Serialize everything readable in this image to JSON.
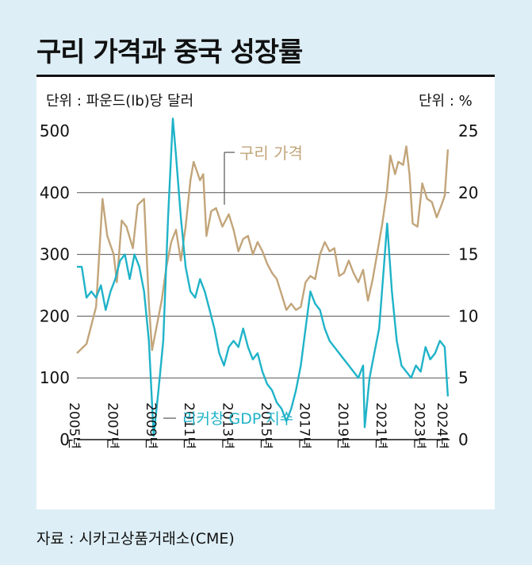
{
  "title": "구리 가격과 중국 성장률",
  "unit_left": "단위 : 파운드(lb)당 달러",
  "unit_right": "단위 : %",
  "source": "자료 : 시카고상품거래소(CME)",
  "colors": {
    "copper": "#c2a57a",
    "gdp": "#1fb3c8",
    "background": "#ddeef6",
    "panel": "#ffffff",
    "grid": "#555555"
  },
  "chart_data": {
    "type": "line",
    "x_ticks": [
      "2005년",
      "2007년",
      "2009년",
      "2011년",
      "2013년",
      "2015년",
      "2017년",
      "2019년",
      "2021년",
      "2023년",
      "2024년"
    ],
    "y_left": {
      "ticks": [
        0,
        100,
        200,
        300,
        400,
        500
      ],
      "range": [
        0,
        500
      ]
    },
    "y_right": {
      "ticks": [
        0,
        5,
        10,
        15,
        20,
        25
      ],
      "range": [
        0,
        25
      ]
    },
    "series": [
      {
        "name": "구리 가격",
        "axis": "left",
        "points": [
          [
            "2005-01",
            140
          ],
          [
            "2005-07",
            155
          ],
          [
            "2006-01",
            215
          ],
          [
            "2006-05",
            390
          ],
          [
            "2006-08",
            330
          ],
          [
            "2006-12",
            300
          ],
          [
            "2007-02",
            255
          ],
          [
            "2007-05",
            355
          ],
          [
            "2007-08",
            345
          ],
          [
            "2007-12",
            310
          ],
          [
            "2008-03",
            380
          ],
          [
            "2008-07",
            390
          ],
          [
            "2008-10",
            220
          ],
          [
            "2008-12",
            145
          ],
          [
            "2009-03",
            185
          ],
          [
            "2009-06",
            225
          ],
          [
            "2009-09",
            280
          ],
          [
            "2009-12",
            320
          ],
          [
            "2010-03",
            340
          ],
          [
            "2010-06",
            290
          ],
          [
            "2010-09",
            345
          ],
          [
            "2010-12",
            420
          ],
          [
            "2011-02",
            450
          ],
          [
            "2011-06",
            420
          ],
          [
            "2011-08",
            430
          ],
          [
            "2011-10",
            330
          ],
          [
            "2012-01",
            370
          ],
          [
            "2012-04",
            375
          ],
          [
            "2012-08",
            345
          ],
          [
            "2012-12",
            365
          ],
          [
            "2013-03",
            340
          ],
          [
            "2013-06",
            305
          ],
          [
            "2013-09",
            325
          ],
          [
            "2013-12",
            330
          ],
          [
            "2014-03",
            300
          ],
          [
            "2014-06",
            320
          ],
          [
            "2014-09",
            305
          ],
          [
            "2014-12",
            285
          ],
          [
            "2015-03",
            270
          ],
          [
            "2015-06",
            260
          ],
          [
            "2015-09",
            235
          ],
          [
            "2015-12",
            210
          ],
          [
            "2016-03",
            220
          ],
          [
            "2016-06",
            210
          ],
          [
            "2016-09",
            215
          ],
          [
            "2016-12",
            255
          ],
          [
            "2017-03",
            265
          ],
          [
            "2017-06",
            260
          ],
          [
            "2017-09",
            300
          ],
          [
            "2017-12",
            320
          ],
          [
            "2018-03",
            305
          ],
          [
            "2018-06",
            310
          ],
          [
            "2018-09",
            265
          ],
          [
            "2018-12",
            270
          ],
          [
            "2019-03",
            290
          ],
          [
            "2019-06",
            270
          ],
          [
            "2019-09",
            255
          ],
          [
            "2019-12",
            275
          ],
          [
            "2020-03",
            225
          ],
          [
            "2020-06",
            260
          ],
          [
            "2020-09",
            305
          ],
          [
            "2020-12",
            350
          ],
          [
            "2021-03",
            405
          ],
          [
            "2021-05",
            460
          ],
          [
            "2021-08",
            430
          ],
          [
            "2021-10",
            450
          ],
          [
            "2022-01",
            445
          ],
          [
            "2022-03",
            475
          ],
          [
            "2022-05",
            430
          ],
          [
            "2022-07",
            350
          ],
          [
            "2022-10",
            345
          ],
          [
            "2023-01",
            415
          ],
          [
            "2023-04",
            390
          ],
          [
            "2023-07",
            385
          ],
          [
            "2023-10",
            360
          ],
          [
            "2024-01",
            380
          ],
          [
            "2024-03",
            395
          ],
          [
            "2024-05",
            470
          ]
        ]
      },
      {
        "name": "리커창 GDP 지수",
        "axis": "right",
        "points": [
          [
            "2005-01",
            14
          ],
          [
            "2005-04",
            14
          ],
          [
            "2005-07",
            11.5
          ],
          [
            "2005-10",
            12
          ],
          [
            "2006-01",
            11.5
          ],
          [
            "2006-04",
            12.5
          ],
          [
            "2006-07",
            10.5
          ],
          [
            "2006-10",
            12
          ],
          [
            "2007-01",
            13
          ],
          [
            "2007-04",
            14.5
          ],
          [
            "2007-07",
            15
          ],
          [
            "2007-10",
            13
          ],
          [
            "2008-01",
            15
          ],
          [
            "2008-04",
            14
          ],
          [
            "2008-07",
            12
          ],
          [
            "2008-10",
            8
          ],
          [
            "2009-01",
            0.3
          ],
          [
            "2009-04",
            4
          ],
          [
            "2009-07",
            8
          ],
          [
            "2009-10",
            18
          ],
          [
            "2010-01",
            26
          ],
          [
            "2010-03",
            23
          ],
          [
            "2010-06",
            18
          ],
          [
            "2010-09",
            14
          ],
          [
            "2010-12",
            12
          ],
          [
            "2011-03",
            11.5
          ],
          [
            "2011-06",
            13
          ],
          [
            "2011-09",
            12
          ],
          [
            "2011-12",
            10.5
          ],
          [
            "2012-03",
            9
          ],
          [
            "2012-06",
            7
          ],
          [
            "2012-09",
            6
          ],
          [
            "2012-12",
            7.5
          ],
          [
            "2013-03",
            8
          ],
          [
            "2013-06",
            7.5
          ],
          [
            "2013-09",
            9
          ],
          [
            "2013-12",
            7.5
          ],
          [
            "2014-03",
            6.5
          ],
          [
            "2014-06",
            7
          ],
          [
            "2014-09",
            5.5
          ],
          [
            "2014-12",
            4.5
          ],
          [
            "2015-03",
            4
          ],
          [
            "2015-06",
            3
          ],
          [
            "2015-09",
            2.5
          ],
          [
            "2015-12",
            1.5
          ],
          [
            "2016-03",
            2.5
          ],
          [
            "2016-06",
            4
          ],
          [
            "2016-09",
            6
          ],
          [
            "2016-12",
            9
          ],
          [
            "2017-03",
            12
          ],
          [
            "2017-06",
            11
          ],
          [
            "2017-09",
            10.5
          ],
          [
            "2017-12",
            9
          ],
          [
            "2018-03",
            8
          ],
          [
            "2018-06",
            7.5
          ],
          [
            "2018-09",
            7
          ],
          [
            "2018-12",
            6.5
          ],
          [
            "2019-03",
            6
          ],
          [
            "2019-06",
            5.5
          ],
          [
            "2019-09",
            5
          ],
          [
            "2019-12",
            6
          ],
          [
            "2020-01",
            1
          ],
          [
            "2020-04",
            5
          ],
          [
            "2020-07",
            7
          ],
          [
            "2020-10",
            9
          ],
          [
            "2021-01",
            14
          ],
          [
            "2021-03",
            17.5
          ],
          [
            "2021-06",
            12
          ],
          [
            "2021-09",
            8
          ],
          [
            "2021-12",
            6
          ],
          [
            "2022-03",
            5.5
          ],
          [
            "2022-06",
            5
          ],
          [
            "2022-09",
            6
          ],
          [
            "2022-12",
            5.5
          ],
          [
            "2023-03",
            7.5
          ],
          [
            "2023-06",
            6.5
          ],
          [
            "2023-09",
            7
          ],
          [
            "2023-12",
            8
          ],
          [
            "2024-03",
            7.5
          ],
          [
            "2024-05",
            3.5
          ]
        ]
      }
    ]
  }
}
